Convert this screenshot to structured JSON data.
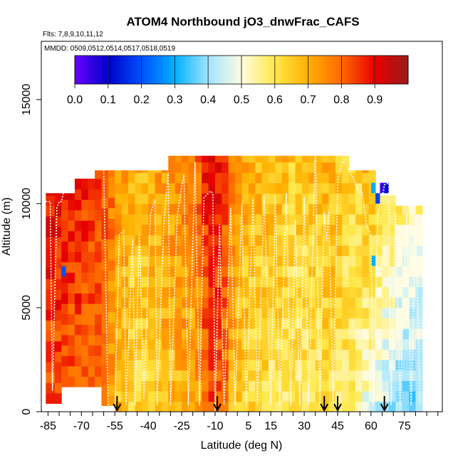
{
  "chart_data": {
    "type": "heatmap",
    "title": "ATOM4 Northbound jO3_dnwFrac_CAFS",
    "subtitle_flights": "Flts: 7,8,9,10,11,12",
    "subtitle_dates": "MMDD: 0509,0512,0514,0517,0518,0519",
    "xlabel": "Latitude (deg N)",
    "ylabel": "Altitude (m)",
    "xlim": [
      -88,
      92
    ],
    "ylim": [
      0,
      17800
    ],
    "x_tick_labels": [
      "-85",
      "-70",
      "-55",
      "-40",
      "-25",
      "-10",
      "5",
      "15",
      "30",
      "45",
      "60",
      "75"
    ],
    "x_minor_ticks": [
      -85,
      -80,
      -75,
      -70,
      -65,
      -60,
      -55,
      -50,
      -45,
      -40,
      -35,
      -30,
      -25,
      -20,
      -15,
      -10,
      -5,
      0,
      5,
      10,
      15,
      20,
      25,
      30,
      35,
      40,
      45,
      50,
      55,
      60,
      65,
      70,
      75,
      80,
      85,
      90
    ],
    "x_major_ticks": [
      -85,
      -70,
      -55,
      -40,
      -25,
      -10,
      5,
      15,
      30,
      45,
      60,
      75
    ],
    "y_ticks": [
      0,
      5000,
      10000,
      15000
    ],
    "y_tick_labels": [
      "0",
      "5000",
      "10000",
      "15000"
    ],
    "colorbar": {
      "ticks": [
        "0.0",
        "0.1",
        "0.2",
        "0.3",
        "0.4",
        "0.5",
        "0.6",
        "0.7",
        "0.8",
        "0.9"
      ],
      "range": [
        0,
        1
      ],
      "colors": [
        "#6a00ff",
        "#0000c8",
        "#0050ff",
        "#00b0ff",
        "#a0e4ff",
        "#fffce0",
        "#ffe84a",
        "#ffb000",
        "#ff6a00",
        "#e80000",
        "#9b1a1a"
      ]
    },
    "bin_size_m": 500,
    "profiles": [
      {
        "lat": -86,
        "top": 10500,
        "base": 400,
        "value": 0.86
      },
      {
        "lat": -82,
        "top": 10500,
        "base": 400,
        "value": 0.85
      },
      {
        "lat": -79,
        "top": 10500,
        "base": 1200,
        "value": 0.84
      },
      {
        "lat": -76,
        "top": 10500,
        "base": 1200,
        "value": 0.83
      },
      {
        "lat": -73,
        "top": 11200,
        "base": 1200,
        "value": 0.84
      },
      {
        "lat": -70,
        "top": 11200,
        "base": 1200,
        "value": 0.82
      },
      {
        "lat": -67,
        "top": 11200,
        "base": 1200,
        "value": 0.81
      },
      {
        "lat": -64,
        "top": 11600,
        "base": 1200,
        "value": 0.8
      },
      {
        "lat": -61,
        "top": 11600,
        "base": 300,
        "value": 0.78
      },
      {
        "lat": -58,
        "top": 11600,
        "base": 300,
        "value": 0.74
      },
      {
        "lat": -55,
        "top": 11600,
        "base": 0,
        "value": 0.7
      },
      {
        "lat": -52,
        "top": 11600,
        "base": 0,
        "value": 0.68
      },
      {
        "lat": -49,
        "top": 11600,
        "base": 0,
        "value": 0.66
      },
      {
        "lat": -46,
        "top": 11600,
        "base": 0,
        "value": 0.65
      },
      {
        "lat": -43,
        "top": 11600,
        "base": 0,
        "value": 0.65
      },
      {
        "lat": -40,
        "top": 11600,
        "base": 0,
        "value": 0.66
      },
      {
        "lat": -37,
        "top": 11600,
        "base": 0,
        "value": 0.67
      },
      {
        "lat": -34,
        "top": 11600,
        "base": 0,
        "value": 0.69
      },
      {
        "lat": -31,
        "top": 12300,
        "base": 0,
        "value": 0.7
      },
      {
        "lat": -28,
        "top": 12300,
        "base": 0,
        "value": 0.71
      },
      {
        "lat": -25,
        "top": 12300,
        "base": 0,
        "value": 0.72
      },
      {
        "lat": -22,
        "top": 12300,
        "base": 0,
        "value": 0.72
      },
      {
        "lat": -19,
        "top": 12300,
        "base": 0,
        "value": 0.76
      },
      {
        "lat": -16,
        "top": 12300,
        "base": 0,
        "value": 0.82
      },
      {
        "lat": -13,
        "top": 12300,
        "base": 0,
        "value": 0.86
      },
      {
        "lat": -10,
        "top": 12300,
        "base": 0,
        "value": 0.84
      },
      {
        "lat": -7,
        "top": 12300,
        "base": 0,
        "value": 0.8
      },
      {
        "lat": -4,
        "top": 12300,
        "base": 0,
        "value": 0.72
      },
      {
        "lat": -1,
        "top": 12300,
        "base": 0,
        "value": 0.68
      },
      {
        "lat": 2,
        "top": 12300,
        "base": 0,
        "value": 0.66
      },
      {
        "lat": 5,
        "top": 12300,
        "base": 0,
        "value": 0.65
      },
      {
        "lat": 8,
        "top": 12300,
        "base": 0,
        "value": 0.64
      },
      {
        "lat": 11,
        "top": 12300,
        "base": 0,
        "value": 0.64
      },
      {
        "lat": 14,
        "top": 12300,
        "base": 0,
        "value": 0.63
      },
      {
        "lat": 17,
        "top": 12300,
        "base": 0,
        "value": 0.63
      },
      {
        "lat": 20,
        "top": 12300,
        "base": 0,
        "value": 0.62
      },
      {
        "lat": 23,
        "top": 12300,
        "base": 0,
        "value": 0.61
      },
      {
        "lat": 26,
        "top": 12300,
        "base": 0,
        "value": 0.61
      },
      {
        "lat": 29,
        "top": 12300,
        "base": 0,
        "value": 0.61
      },
      {
        "lat": 32,
        "top": 12300,
        "base": 0,
        "value": 0.62
      },
      {
        "lat": 35,
        "top": 12300,
        "base": 0,
        "value": 0.63
      },
      {
        "lat": 38,
        "top": 12300,
        "base": 0,
        "value": 0.64
      },
      {
        "lat": 41,
        "top": 12300,
        "base": 0,
        "value": 0.64
      },
      {
        "lat": 44,
        "top": 12300,
        "base": 0,
        "value": 0.62
      },
      {
        "lat": 47,
        "top": 12300,
        "base": 0,
        "value": 0.6
      },
      {
        "lat": 50,
        "top": 11600,
        "base": 0,
        "value": 0.59
      },
      {
        "lat": 53,
        "top": 11600,
        "base": 0,
        "value": 0.58
      },
      {
        "lat": 56,
        "top": 11600,
        "base": 0,
        "value": 0.57
      },
      {
        "lat": 59,
        "top": 11600,
        "base": 0,
        "value": 0.56
      },
      {
        "lat": 62,
        "top": 10400,
        "base": 0,
        "value": 0.52
      },
      {
        "lat": 65,
        "top": 10400,
        "base": 0,
        "value": 0.5
      },
      {
        "lat": 68,
        "top": 10400,
        "base": 0,
        "value": 0.49
      },
      {
        "lat": 71,
        "top": 9900,
        "base": 0,
        "value": 0.47
      },
      {
        "lat": 74,
        "top": 9900,
        "base": 0,
        "value": 0.46
      },
      {
        "lat": 77,
        "top": 9900,
        "base": 0,
        "value": 0.45
      },
      {
        "lat": 80,
        "top": 9900,
        "base": 0,
        "value": 0.45
      }
    ],
    "low_value_patches": [
      {
        "lat": -79,
        "alt": 6500,
        "value": 0.2
      },
      {
        "lat": 60,
        "alt": 10500,
        "value": 0.3
      },
      {
        "lat": 62,
        "alt": 10000,
        "value": 0.18
      },
      {
        "lat": 64,
        "alt": 10500,
        "value": 0.05
      },
      {
        "lat": 66,
        "alt": 10500,
        "value": 0.12
      },
      {
        "lat": 60,
        "alt": 7000,
        "value": 0.3
      }
    ],
    "flight_track": [
      [
        -86,
        10100
      ],
      [
        -84,
        10100
      ],
      [
        -83,
        1000
      ],
      [
        -81,
        9800
      ],
      [
        -80,
        10100
      ],
      [
        -79,
        10100
      ],
      [
        -77,
        11000
      ],
      [
        -76,
        11000
      ],
      [
        -74,
        11200
      ],
      [
        -72,
        11300
      ],
      [
        -70,
        11500
      ],
      [
        -68,
        11700
      ],
      [
        -65,
        11800
      ],
      [
        -63,
        11900
      ],
      [
        -61,
        12000
      ],
      [
        -60,
        11600
      ],
      [
        -58,
        0
      ],
      [
        -55,
        0
      ],
      [
        -53,
        8500
      ],
      [
        -51,
        8700
      ],
      [
        -50,
        300
      ],
      [
        -47,
        8300
      ],
      [
        -46,
        300
      ],
      [
        -44,
        8600
      ],
      [
        -42,
        600
      ],
      [
        -39,
        9500
      ],
      [
        -37,
        10200
      ],
      [
        -36,
        300
      ],
      [
        -33,
        9000
      ],
      [
        -31,
        11500
      ],
      [
        -30,
        300
      ],
      [
        -27,
        9400
      ],
      [
        -25,
        10800
      ],
      [
        -24,
        11400
      ],
      [
        -22,
        300
      ],
      [
        -19,
        12000
      ],
      [
        -17,
        300
      ],
      [
        -15,
        10300
      ],
      [
        -12,
        10600
      ],
      [
        -11,
        10500
      ],
      [
        -10,
        0
      ],
      [
        -8,
        9000
      ],
      [
        -6,
        300
      ],
      [
        -3,
        9800
      ],
      [
        -1,
        300
      ],
      [
        2,
        10000
      ],
      [
        4,
        300
      ],
      [
        7,
        10300
      ],
      [
        9,
        300
      ],
      [
        12,
        10400
      ],
      [
        15,
        300
      ],
      [
        17,
        10400
      ],
      [
        19,
        300
      ],
      [
        22,
        10500
      ],
      [
        24,
        300
      ],
      [
        26,
        9200
      ],
      [
        28,
        300
      ],
      [
        30,
        10300
      ],
      [
        32,
        300
      ],
      [
        35,
        12800
      ],
      [
        37,
        300
      ],
      [
        39,
        9600
      ],
      [
        40,
        8200
      ],
      [
        41,
        9700
      ],
      [
        43,
        300
      ],
      [
        45,
        11100
      ],
      [
        47,
        12000
      ],
      [
        49,
        11900
      ],
      [
        50,
        11600
      ],
      [
        52,
        11200
      ],
      [
        54,
        10700
      ],
      [
        56,
        10600
      ],
      [
        58,
        8900
      ],
      [
        60,
        8500
      ],
      [
        61,
        300
      ],
      [
        63,
        9500
      ],
      [
        65,
        10300
      ],
      [
        66,
        10900
      ],
      [
        68,
        11000
      ],
      [
        69,
        300
      ],
      [
        71,
        9600
      ],
      [
        73,
        300
      ],
      [
        76,
        9500
      ],
      [
        78,
        300
      ],
      [
        80,
        9400
      ],
      [
        82,
        300
      ]
    ],
    "arrow_lats": [
      -54,
      -9,
      39,
      45,
      66
    ]
  }
}
